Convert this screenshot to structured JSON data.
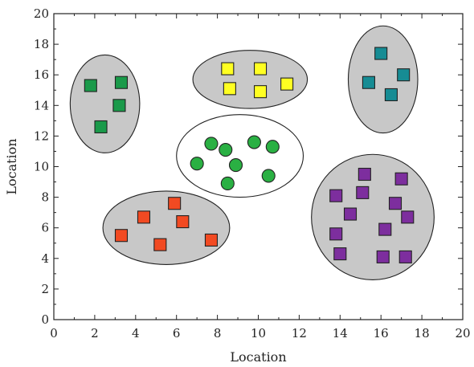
{
  "chart_data": {
    "type": "scatter",
    "xlabel": "Location",
    "ylabel": "Location",
    "xlim": [
      0,
      20
    ],
    "ylim": [
      0,
      20
    ],
    "x_ticks": [
      "0",
      "2",
      "4",
      "6",
      "8",
      "10",
      "12",
      "14",
      "16",
      "18",
      "20"
    ],
    "y_ticks": [
      "0",
      "2",
      "4",
      "6",
      "8",
      "10",
      "12",
      "14",
      "16",
      "18",
      "20"
    ],
    "grid": false,
    "clusters": [
      {
        "id": "green-squares",
        "marker": "square",
        "color": "#1a9a4a",
        "ellipse": {
          "cx": 2.5,
          "cy": 14.1,
          "rx": 1.7,
          "ry": 3.2,
          "fill": "#c8c8c8"
        },
        "points": [
          [
            1.8,
            15.3
          ],
          [
            3.3,
            15.5
          ],
          [
            3.2,
            14.0
          ],
          [
            2.3,
            12.6
          ]
        ]
      },
      {
        "id": "yellow-squares",
        "marker": "square",
        "color": "#ffff22",
        "ellipse": {
          "cx": 9.6,
          "cy": 15.7,
          "rx": 2.8,
          "ry": 1.9,
          "fill": "#c8c8c8"
        },
        "points": [
          [
            8.5,
            16.4
          ],
          [
            10.1,
            16.4
          ],
          [
            8.6,
            15.1
          ],
          [
            10.1,
            14.9
          ],
          [
            11.4,
            15.4
          ]
        ]
      },
      {
        "id": "teal-squares",
        "marker": "square",
        "color": "#168c94",
        "ellipse": {
          "cx": 16.1,
          "cy": 15.7,
          "rx": 1.7,
          "ry": 3.5,
          "fill": "#c8c8c8"
        },
        "points": [
          [
            16.0,
            17.4
          ],
          [
            17.1,
            16.0
          ],
          [
            15.4,
            15.5
          ],
          [
            16.5,
            14.7
          ]
        ]
      },
      {
        "id": "green-circles",
        "marker": "circle",
        "color": "#2ab043",
        "ellipse": {
          "cx": 9.1,
          "cy": 10.7,
          "rx": 3.1,
          "ry": 2.7,
          "fill": "#ffffff"
        },
        "points": [
          [
            7.7,
            11.5
          ],
          [
            8.4,
            11.1
          ],
          [
            9.8,
            11.6
          ],
          [
            10.7,
            11.3
          ],
          [
            7.0,
            10.2
          ],
          [
            8.9,
            10.1
          ],
          [
            10.5,
            9.4
          ],
          [
            8.5,
            8.9
          ]
        ]
      },
      {
        "id": "red-squares",
        "marker": "square",
        "color": "#f24a22",
        "ellipse": {
          "cx": 5.5,
          "cy": 6.0,
          "rx": 3.1,
          "ry": 2.4,
          "fill": "#c8c8c8"
        },
        "points": [
          [
            5.9,
            7.6
          ],
          [
            4.4,
            6.7
          ],
          [
            6.3,
            6.4
          ],
          [
            3.3,
            5.5
          ],
          [
            5.2,
            4.9
          ],
          [
            7.7,
            5.2
          ]
        ]
      },
      {
        "id": "purple-squares",
        "marker": "square",
        "color": "#7d2e9e",
        "ellipse": {
          "cx": 15.6,
          "cy": 6.7,
          "rx": 3.0,
          "ry": 4.1,
          "fill": "#c8c8c8"
        },
        "points": [
          [
            15.2,
            9.5
          ],
          [
            17.0,
            9.2
          ],
          [
            13.8,
            8.1
          ],
          [
            15.1,
            8.3
          ],
          [
            16.7,
            7.6
          ],
          [
            14.5,
            6.9
          ],
          [
            17.3,
            6.7
          ],
          [
            16.2,
            5.9
          ],
          [
            13.8,
            5.6
          ],
          [
            14.0,
            4.3
          ],
          [
            16.1,
            4.1
          ],
          [
            17.2,
            4.1
          ]
        ]
      }
    ]
  }
}
